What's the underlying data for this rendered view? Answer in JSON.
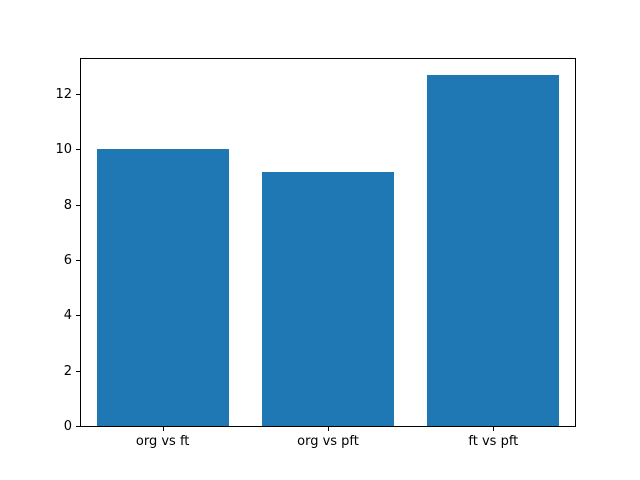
{
  "chart_data": {
    "type": "bar",
    "categories": [
      "org vs ft",
      "org vs pft",
      "ft vs pft"
    ],
    "values": [
      10.0,
      9.2,
      12.7
    ],
    "title": "",
    "xlabel": "",
    "ylabel": "",
    "ylim": [
      0,
      13.34
    ],
    "yticks": [
      0,
      2,
      4,
      6,
      8,
      10,
      12
    ],
    "bar_width_fraction": 0.8,
    "grid": false,
    "legend": null,
    "bar_color": "#1f77b4",
    "axis_color": "#000000",
    "background_color": "#ffffff"
  }
}
